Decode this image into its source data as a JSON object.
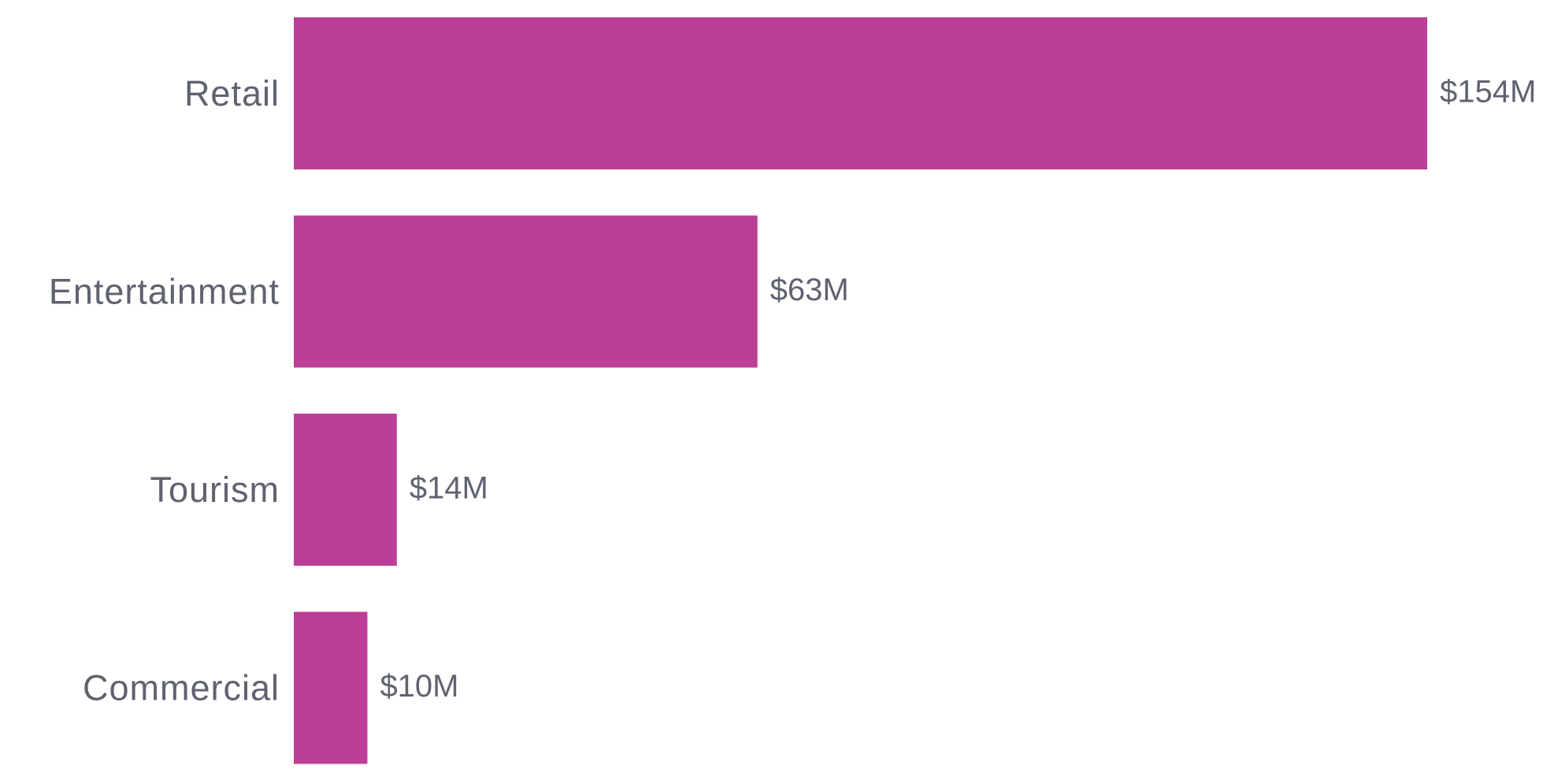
{
  "chart_data": {
    "type": "bar",
    "orientation": "horizontal",
    "categories": [
      "Retail",
      "Entertainment",
      "Tourism",
      "Commercial"
    ],
    "values": [
      154,
      63,
      14,
      10
    ],
    "value_labels": [
      "$154M",
      "$63M",
      "$14M",
      "$10M"
    ],
    "title": "",
    "xlabel": "",
    "ylabel": "",
    "xlim": [
      0,
      154
    ],
    "grid": false,
    "legend": "none"
  },
  "colors": {
    "bar": "#bc3e96",
    "text": "#5f6370",
    "background": "#ffffff"
  }
}
